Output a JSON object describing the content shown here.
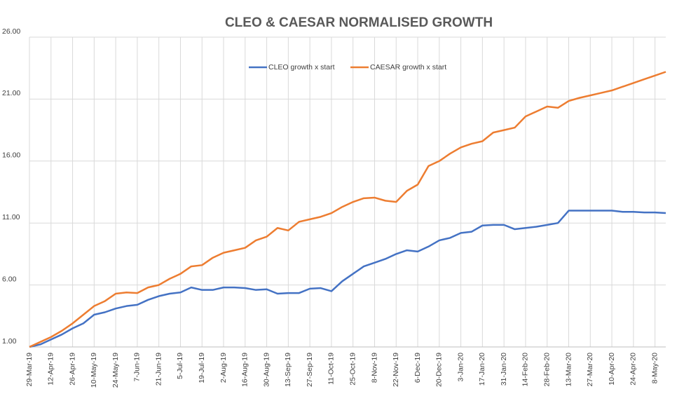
{
  "chart_data": {
    "type": "line",
    "title": "CLEO & CAESAR NORMALISED GROWTH",
    "categories": [
      "29-Mar-19",
      null,
      "12-Apr-19",
      null,
      "26-Apr-19",
      null,
      "10-May-19",
      null,
      "24-May-19",
      null,
      "7-Jun-19",
      null,
      "21-Jun-19",
      null,
      "5-Jul-19",
      null,
      "19-Jul-19",
      null,
      "2-Aug-19",
      null,
      "16-Aug-19",
      null,
      "30-Aug-19",
      null,
      "13-Sep-19",
      null,
      "27-Sep-19",
      null,
      "11-Oct-19",
      null,
      "25-Oct-19",
      null,
      "8-Nov-19",
      null,
      "22-Nov-19",
      null,
      "6-Dec-19",
      null,
      "20-Dec-19",
      null,
      "3-Jan-20",
      null,
      "17-Jan-20",
      null,
      "31-Jan-20",
      null,
      "14-Feb-20",
      null,
      "28-Feb-20",
      null,
      "13-Mar-20",
      null,
      "27-Mar-20",
      null,
      "10-Apr-20",
      null,
      "24-Apr-20",
      null,
      "8-May-20",
      null
    ],
    "series": [
      {
        "name": "CLEO growth x start",
        "color": "#4472c4",
        "values": [
          1.0,
          1.2,
          1.6,
          2.0,
          2.5,
          2.9,
          3.6,
          3.8,
          4.1,
          4.3,
          4.4,
          4.8,
          5.1,
          5.3,
          5.4,
          5.8,
          5.6,
          5.6,
          5.8,
          5.8,
          5.75,
          5.6,
          5.65,
          5.3,
          5.35,
          5.35,
          5.7,
          5.75,
          5.5,
          6.3,
          6.9,
          7.5,
          7.8,
          8.1,
          8.5,
          8.8,
          8.7,
          9.1,
          9.6,
          9.8,
          10.2,
          10.3,
          10.8,
          10.85,
          10.85,
          10.5,
          10.6,
          10.7,
          10.85,
          11.0,
          12.0,
          12.0,
          12.0,
          12.0,
          12.0,
          11.9,
          11.9,
          11.85,
          11.85,
          11.8
        ]
      },
      {
        "name": "CAESAR growth x start",
        "color": "#ed7d31",
        "values": [
          1.0,
          1.4,
          1.8,
          2.3,
          2.9,
          3.6,
          4.3,
          4.7,
          5.3,
          5.4,
          5.35,
          5.8,
          6.0,
          6.5,
          6.9,
          7.5,
          7.6,
          8.2,
          8.6,
          8.8,
          9.0,
          9.6,
          9.9,
          10.6,
          10.4,
          11.1,
          11.3,
          11.5,
          11.8,
          12.3,
          12.7,
          13.0,
          13.05,
          12.8,
          12.7,
          13.6,
          14.1,
          15.6,
          16.0,
          16.6,
          17.1,
          17.4,
          17.6,
          18.3,
          18.5,
          18.7,
          19.6,
          20.0,
          20.4,
          20.3,
          20.85,
          21.1,
          21.3,
          21.5,
          21.7,
          22.0,
          22.3,
          22.6,
          22.9,
          23.2
        ]
      }
    ],
    "ylim": [
      1,
      26
    ],
    "yticks": [
      {
        "value": 1,
        "label": "1.00"
      },
      {
        "value": 6,
        "label": "6.00"
      },
      {
        "value": 11,
        "label": "11.00"
      },
      {
        "value": 16,
        "label": "16.00"
      },
      {
        "value": 21,
        "label": "21.00"
      },
      {
        "value": 26,
        "label": "26.00"
      }
    ],
    "grid": true,
    "legend": "top"
  }
}
